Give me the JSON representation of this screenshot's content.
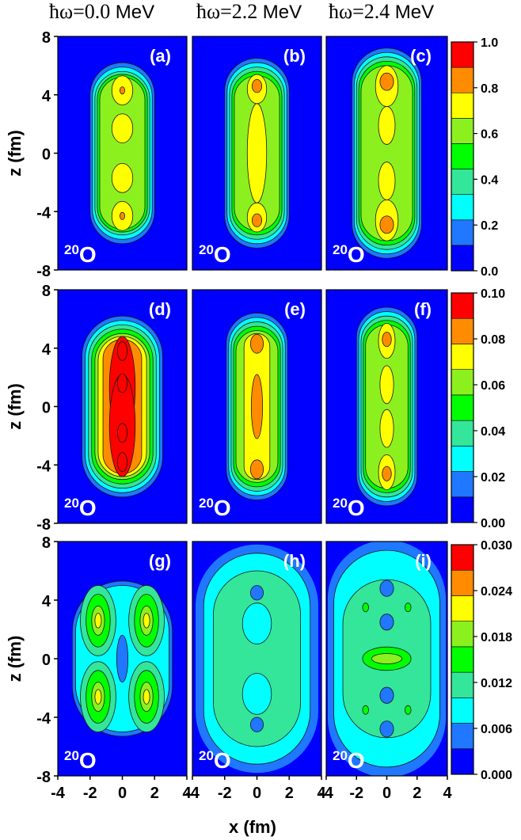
{
  "column_headers": [
    {
      "omega": "ħω=0.0",
      "unit": "MeV"
    },
    {
      "omega": "ħω=2.2",
      "unit": "MeV"
    },
    {
      "omega": "ħω=2.4",
      "unit": "MeV"
    }
  ],
  "x_axis_label": "x (fm)",
  "y_axis_label": "z (fm)",
  "x_ticks": [
    "-4",
    "-2",
    "0",
    "2",
    "4"
  ],
  "y_ticks": [
    "8",
    "4",
    "0",
    "-4",
    "-8"
  ],
  "nucleus": {
    "mass": "20",
    "symbol": "O"
  },
  "panel_labels": [
    "(a)",
    "(b)",
    "(c)",
    "(d)",
    "(e)",
    "(f)",
    "(g)",
    "(h)",
    "(i)"
  ],
  "colorbars": [
    {
      "ticks": [
        "1.0",
        "0.8",
        "0.6",
        "0.4",
        "0.2",
        "0.0"
      ]
    },
    {
      "ticks": [
        "0.10",
        "0.08",
        "0.06",
        "0.04",
        "0.02",
        "0.00"
      ]
    },
    {
      "ticks": [
        "0.030",
        "0.024",
        "0.018",
        "0.012",
        "0.006",
        "0.000"
      ]
    }
  ],
  "colormap": [
    "#0000ff",
    "#1f78ff",
    "#00ffff",
    "#33e69a",
    "#00ff00",
    "#8cf01f",
    "#ffff00",
    "#ff8c00",
    "#ff0000"
  ],
  "background_color": "#0000ff"
}
